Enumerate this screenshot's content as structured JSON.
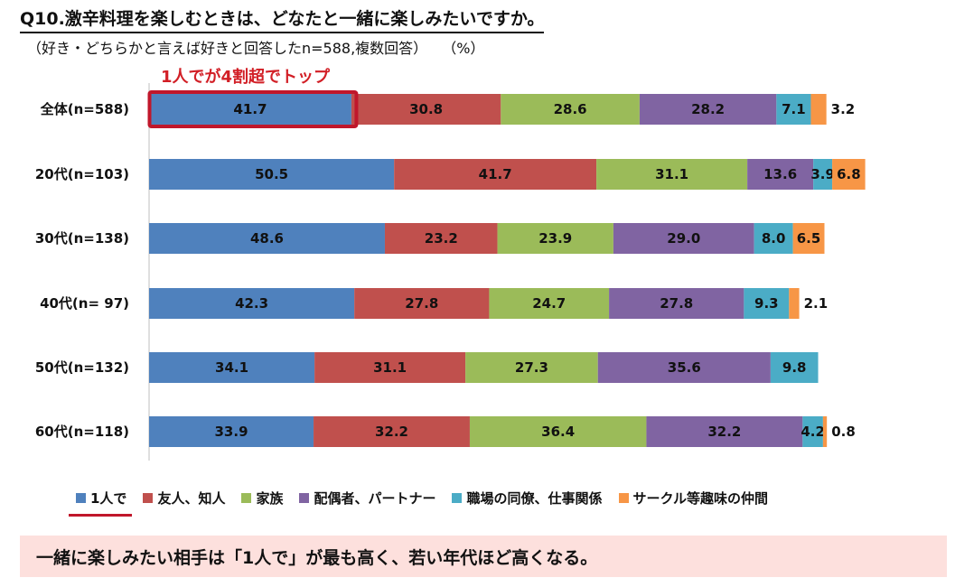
{
  "title": "Q10.激辛料理を楽しむときは、どなたと一緒に楽しみたいですか。",
  "subtitle": "（好き・どちらかと言えば好きと回答したn=588,複数回答）",
  "unit": "（%）",
  "callout": "1人でが4割超でトップ",
  "summary": "一緒に楽しみたい相手は「1人で」が最も高く、若い年代ほど高くなる。",
  "chart_data": {
    "type": "bar",
    "orientation": "horizontal",
    "stacked": true,
    "categories": [
      "全体(n=588)",
      "20代(n=103)",
      "30代(n=138)",
      "40代(n=  97)",
      "50代(n=132)",
      "60代(n=118)"
    ],
    "series": [
      {
        "name": "1人で",
        "color": "#4f81bd",
        "values": [
          41.7,
          50.5,
          48.6,
          42.3,
          34.1,
          33.9
        ]
      },
      {
        "name": "友人、知人",
        "color": "#c0504d",
        "values": [
          30.8,
          41.7,
          23.2,
          27.8,
          31.1,
          32.2
        ]
      },
      {
        "name": "家族",
        "color": "#9bbb59",
        "values": [
          28.6,
          31.1,
          23.9,
          24.7,
          27.3,
          36.4
        ]
      },
      {
        "name": "配偶者、パートナー",
        "color": "#8064a2",
        "values": [
          28.2,
          13.6,
          29.0,
          27.8,
          35.6,
          32.2
        ]
      },
      {
        "name": "職場の同僚、仕事関係",
        "color": "#4bacc6",
        "values": [
          7.1,
          3.9,
          8.0,
          9.3,
          9.8,
          4.2
        ]
      },
      {
        "name": "サークル等趣味の仲間",
        "color": "#f79646",
        "values": [
          3.2,
          6.8,
          6.5,
          2.1,
          null,
          0.8
        ]
      }
    ],
    "highlight": {
      "category": 0,
      "series": 0,
      "color": "#c0172b"
    },
    "xlim": [
      0,
      150
    ],
    "title": "Q10.激辛料理を楽しむときは、どなたと一緒に楽しみたいですか。",
    "xlabel": "",
    "ylabel": "",
    "legend_position": "bottom"
  }
}
